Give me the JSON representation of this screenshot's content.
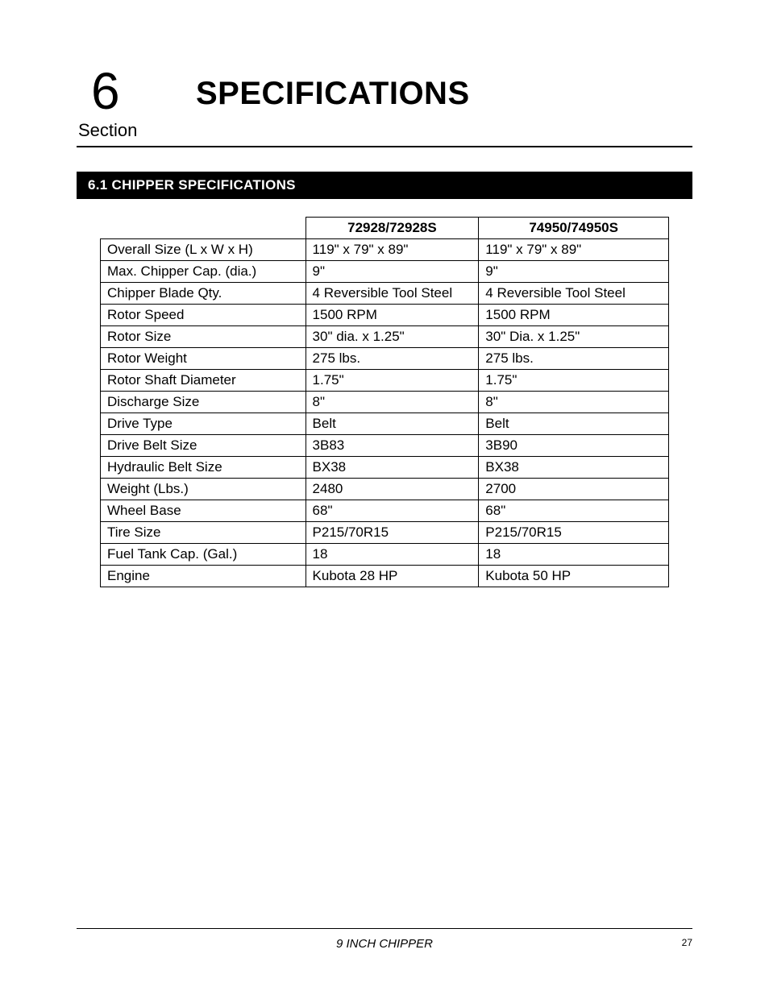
{
  "header": {
    "section_number": "6",
    "title": "SPECIFICATIONS",
    "section_label": "Section"
  },
  "subsection": {
    "label": "6.1  CHIPPER SPECIFICATIONS"
  },
  "table": {
    "columns": [
      "",
      "72928/72928S",
      "74950/74950S"
    ],
    "rows": [
      [
        "Overall Size (L x W x H)",
        "119\" x 79\" x 89\"",
        "119\" x 79\" x 89\""
      ],
      [
        "Max. Chipper Cap. (dia.)",
        "9\"",
        "9\""
      ],
      [
        "Chipper Blade Qty.",
        "4 Reversible Tool Steel",
        "4 Reversible Tool Steel"
      ],
      [
        "Rotor Speed",
        "1500 RPM",
        "1500 RPM"
      ],
      [
        "Rotor Size",
        "30\" dia. x 1.25\"",
        "30\" Dia. x 1.25\""
      ],
      [
        "Rotor Weight",
        "275 lbs.",
        "275 lbs."
      ],
      [
        "Rotor Shaft Diameter",
        "1.75\"",
        "1.75\""
      ],
      [
        "Discharge Size",
        "8\"",
        "8\""
      ],
      [
        "Drive Type",
        "Belt",
        "Belt"
      ],
      [
        "Drive Belt Size",
        "3B83",
        "3B90"
      ],
      [
        "Hydraulic Belt Size",
        "BX38",
        "BX38"
      ],
      [
        "Weight (Lbs.)",
        "2480",
        "2700"
      ],
      [
        "Wheel Base",
        "68\"",
        "68\""
      ],
      [
        "Tire Size",
        "P215/70R15",
        "P215/70R15"
      ],
      [
        "Fuel Tank Cap. (Gal.)",
        "18",
        "18"
      ],
      [
        "Engine",
        "Kubota 28 HP",
        "Kubota 50 HP"
      ]
    ]
  },
  "footer": {
    "center_text": "9 INCH CHIPPER",
    "page_number": "27"
  },
  "colors": {
    "text": "#000000",
    "background": "#ffffff",
    "bar_bg": "#000000",
    "bar_text": "#ffffff"
  }
}
